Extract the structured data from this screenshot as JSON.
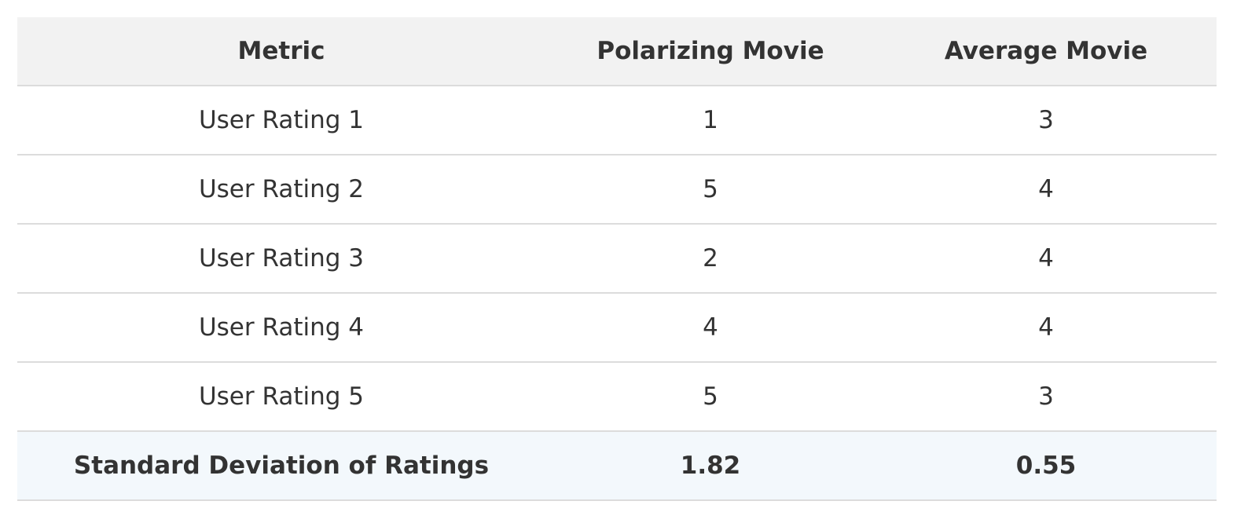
{
  "table": {
    "header": [
      "Metric",
      "Polarizing Movie",
      "Average Movie"
    ],
    "rows": [
      [
        "User Rating 1",
        1,
        3
      ],
      [
        "User Rating 2",
        5,
        4
      ],
      [
        "User Rating 3",
        2,
        4
      ],
      [
        "User Rating 4",
        4,
        4
      ],
      [
        "User Rating 5",
        5,
        3
      ]
    ],
    "summary": [
      "Standard Deviation of Ratings",
      1.82,
      0.55
    ]
  }
}
